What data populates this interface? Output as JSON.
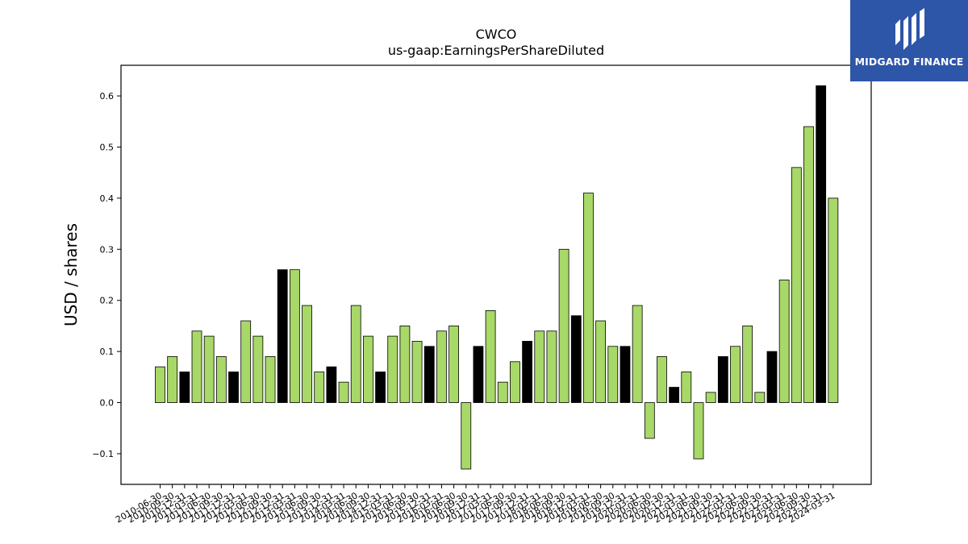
{
  "chart_data": {
    "type": "bar",
    "title": "CWCO",
    "subtitle": "us-gaap:EarningsPerShareDiluted",
    "xlabel": "",
    "ylabel": "USD / shares",
    "ylim": [
      -0.16,
      0.66
    ],
    "yticks": [
      -0.1,
      0.0,
      0.1,
      0.2,
      0.3,
      0.4,
      0.5,
      0.6
    ],
    "grid": false,
    "colors": {
      "quarter": "#a8d868",
      "annual": "#000000",
      "edge": "#000000"
    },
    "categories": [
      "2010-06-30",
      "2010-09-30",
      "2010-12-31",
      "2011-03-31",
      "2011-06-30",
      "2011-09-30",
      "2011-12-31",
      "2012-03-31",
      "2012-06-30",
      "2012-09-30",
      "2012-12-31",
      "2013-03-31",
      "2013-06-30",
      "2013-09-30",
      "2013-12-31",
      "2014-03-31",
      "2014-06-30",
      "2014-09-30",
      "2014-12-31",
      "2015-03-31",
      "2015-06-30",
      "2015-09-30",
      "2015-12-31",
      "2016-03-31",
      "2016-06-30",
      "2016-09-30",
      "2016-12-31",
      "2017-03-31",
      "2017-06-30",
      "2017-09-30",
      "2017-12-31",
      "2018-03-31",
      "2018-06-30",
      "2018-09-30",
      "2018-12-31",
      "2019-03-31",
      "2019-06-30",
      "2019-09-30",
      "2019-12-31",
      "2020-03-31",
      "2020-06-30",
      "2020-09-30",
      "2020-12-31",
      "2021-03-31",
      "2021-06-30",
      "2021-09-30",
      "2021-12-31",
      "2022-03-31",
      "2022-06-30",
      "2022-09-30",
      "2022-12-31",
      "2023-03-31",
      "2023-06-30",
      "2023-09-30",
      "2023-12-31",
      "2024-03-31"
    ],
    "values": [
      0.07,
      0.09,
      0.06,
      0.14,
      0.13,
      0.09,
      0.06,
      0.16,
      0.13,
      0.09,
      0.26,
      0.26,
      0.19,
      0.06,
      0.07,
      0.04,
      0.19,
      0.13,
      0.06,
      0.13,
      0.15,
      0.12,
      0.11,
      0.14,
      0.15,
      -0.13,
      0.11,
      0.18,
      0.04,
      0.08,
      0.12,
      0.14,
      0.14,
      0.3,
      0.17,
      0.41,
      0.16,
      0.11,
      0.11,
      0.19,
      -0.07,
      0.09,
      0.03,
      0.06,
      -0.11,
      0.02,
      0.09,
      0.11,
      0.15,
      0.02,
      0.1,
      0.24,
      0.46,
      0.54,
      0.62,
      0.4
    ],
    "annual": [
      false,
      false,
      true,
      false,
      false,
      false,
      true,
      false,
      false,
      false,
      true,
      false,
      false,
      false,
      true,
      false,
      false,
      false,
      true,
      false,
      false,
      false,
      true,
      false,
      false,
      false,
      true,
      false,
      false,
      false,
      true,
      false,
      false,
      false,
      true,
      false,
      false,
      false,
      true,
      false,
      false,
      false,
      true,
      false,
      false,
      false,
      true,
      false,
      false,
      false,
      true,
      false,
      false,
      false,
      true,
      false
    ]
  },
  "logo": {
    "text": "MIDGARD FINANCE"
  }
}
